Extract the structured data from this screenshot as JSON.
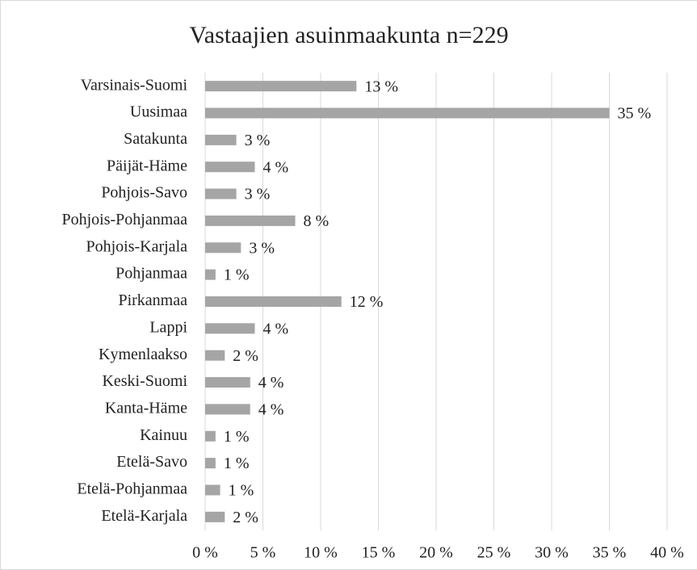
{
  "chart_data": {
    "type": "barh",
    "title": "Vastaajien asuinmaakunta n=229",
    "categories": [
      "Varsinais-Suomi",
      "Uusimaa",
      "Satakunta",
      "Päijät-Häme",
      "Pohjois-Savo",
      "Pohjois-Pohjanmaa",
      "Pohjois-Karjala",
      "Pohjanmaa",
      "Pirkanmaa",
      "Lappi",
      "Kymenlaakso",
      "Keski-Suomi",
      "Kanta-Häme",
      "Kainuu",
      "Etelä-Savo",
      "Etelä-Pohjanmaa",
      "Etelä-Karjala"
    ],
    "values": [
      13.1,
      35.0,
      2.7,
      4.3,
      2.7,
      7.8,
      3.1,
      0.9,
      11.8,
      4.3,
      1.7,
      3.9,
      3.9,
      0.9,
      0.9,
      1.3,
      1.7
    ],
    "value_labels": [
      "13 %",
      "35 %",
      "3 %",
      "4 %",
      "3 %",
      "8 %",
      "3 %",
      "1 %",
      "12 %",
      "4 %",
      "2 %",
      "4 %",
      "4 %",
      "1 %",
      "1 %",
      "1 %",
      "2 %"
    ],
    "color": "#a5a5a5",
    "xlim": [
      0,
      40
    ],
    "xticks": [
      {
        "value": 0,
        "label": "0 %"
      },
      {
        "value": 5,
        "label": "5 %"
      },
      {
        "value": 10,
        "label": "10 %"
      },
      {
        "value": 15,
        "label": "15 %"
      },
      {
        "value": 20,
        "label": "20 %"
      },
      {
        "value": 25,
        "label": "25 %"
      },
      {
        "value": 30,
        "label": "30 %"
      },
      {
        "value": 35,
        "label": "35 %"
      },
      {
        "value": 40,
        "label": "40 %"
      }
    ],
    "grid": true
  }
}
